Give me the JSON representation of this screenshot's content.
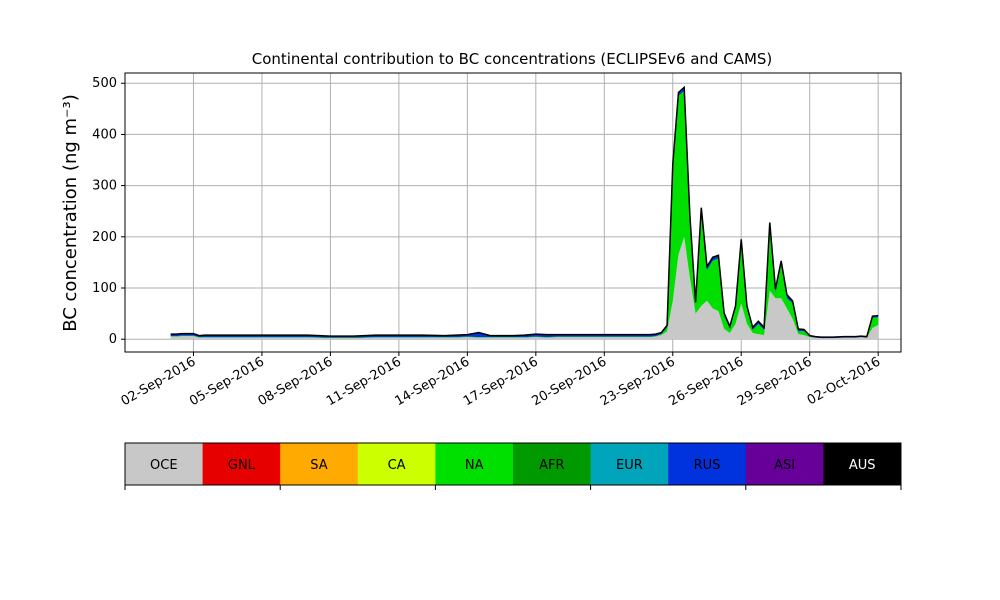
{
  "chart_data": {
    "type": "area",
    "title": "Continental contribution to BC concentrations (ECLIPSEv6 and CAMS)",
    "ylabel": "BC concentration (ng m⁻³)",
    "xlabel": "",
    "ylim": [
      -25,
      520
    ],
    "xlim": [
      "2016-08-30",
      "2016-10-03"
    ],
    "grid": true,
    "yticks": [
      0,
      100,
      200,
      300,
      400,
      500
    ],
    "xtick_labels": [
      "02-Sep-2016",
      "05-Sep-2016",
      "08-Sep-2016",
      "11-Sep-2016",
      "14-Sep-2016",
      "17-Sep-2016",
      "20-Sep-2016",
      "23-Sep-2016",
      "26-Sep-2016",
      "29-Sep-2016",
      "02-Oct-2016"
    ],
    "x": [
      "2016-09-01",
      "2016-09-01 06:00",
      "2016-09-01 12:00",
      "2016-09-02",
      "2016-09-02 06:00",
      "2016-09-02 12:00",
      "2016-09-03",
      "2016-09-04",
      "2016-09-05",
      "2016-09-06",
      "2016-09-07",
      "2016-09-08",
      "2016-09-09",
      "2016-09-10",
      "2016-09-11",
      "2016-09-12",
      "2016-09-13",
      "2016-09-13 12:00",
      "2016-09-14",
      "2016-09-14 12:00",
      "2016-09-15",
      "2016-09-16",
      "2016-09-16 12:00",
      "2016-09-17",
      "2016-09-17 12:00",
      "2016-09-18",
      "2016-09-19",
      "2016-09-20",
      "2016-09-21",
      "2016-09-22",
      "2016-09-22 06:00",
      "2016-09-22 12:00",
      "2016-09-22 18:00",
      "2016-09-23",
      "2016-09-23 06:00",
      "2016-09-23 12:00",
      "2016-09-23 18:00",
      "2016-09-24",
      "2016-09-24 06:00",
      "2016-09-24 12:00",
      "2016-09-24 18:00",
      "2016-09-25",
      "2016-09-25 06:00",
      "2016-09-25 12:00",
      "2016-09-25 18:00",
      "2016-09-26",
      "2016-09-26 06:00",
      "2016-09-26 12:00",
      "2016-09-26 18:00",
      "2016-09-27",
      "2016-09-27 06:00",
      "2016-09-27 12:00",
      "2016-09-27 18:00",
      "2016-09-28",
      "2016-09-28 06:00",
      "2016-09-28 12:00",
      "2016-09-28 18:00",
      "2016-09-29",
      "2016-09-29 06:00",
      "2016-09-29 12:00",
      "2016-09-29 18:00",
      "2016-09-30",
      "2016-09-30 12:00",
      "2016-10-01",
      "2016-10-01 06:00",
      "2016-10-01 12:00",
      "2016-10-01 18:00",
      "2016-10-02"
    ],
    "series": [
      {
        "name": "OCE",
        "color": "#c8c8c8",
        "values": [
          5,
          5,
          6,
          6,
          3,
          3,
          3,
          3,
          3,
          3,
          3,
          2,
          2,
          3,
          3,
          3,
          3,
          3,
          4,
          3,
          3,
          3,
          3,
          4,
          3,
          4,
          4,
          4,
          4,
          4,
          5,
          8,
          15,
          75,
          165,
          200,
          120,
          50,
          65,
          75,
          60,
          55,
          20,
          12,
          30,
          70,
          30,
          12,
          10,
          8,
          95,
          80,
          80,
          60,
          40,
          10,
          8,
          4,
          3,
          2,
          2,
          2,
          3,
          3,
          4,
          3,
          22,
          28
        ]
      },
      {
        "name": "NA",
        "color": "#00e000",
        "values": [
          1,
          1,
          1,
          1,
          1,
          1,
          1,
          1,
          1,
          1,
          1,
          1,
          1,
          1,
          1,
          1,
          1,
          1,
          1,
          1,
          1,
          1,
          1,
          1,
          1,
          1,
          1,
          1,
          1,
          1,
          1,
          2,
          8,
          260,
          310,
          285,
          115,
          15,
          185,
          60,
          93,
          103,
          25,
          8,
          30,
          120,
          30,
          6,
          20,
          10,
          125,
          10,
          65,
          20,
          30,
          5,
          8,
          1,
          0,
          0,
          0,
          0,
          0,
          0,
          0,
          0,
          20,
          15
        ]
      },
      {
        "name": "RUS",
        "color": "#0033dd",
        "values": [
          3,
          3,
          3,
          3,
          2,
          3,
          3,
          3,
          3,
          3,
          3,
          2,
          2,
          3,
          3,
          3,
          2,
          3,
          3,
          8,
          2,
          2,
          3,
          4,
          4,
          3,
          3,
          3,
          3,
          3,
          3,
          2,
          2,
          4,
          5,
          5,
          5,
          5,
          5,
          5,
          5,
          4,
          4,
          3,
          3,
          3,
          3,
          3,
          3,
          3,
          5,
          5,
          5,
          5,
          3,
          3,
          2,
          1,
          1,
          1,
          1,
          1,
          1,
          1,
          1,
          1,
          2,
          2
        ]
      },
      {
        "name": "AUS",
        "color": "#000000",
        "values": [
          1,
          1,
          1,
          1,
          1,
          1,
          1,
          1,
          1,
          1,
          1,
          1,
          1,
          1,
          1,
          1,
          1,
          1,
          1,
          1,
          1,
          1,
          1,
          1,
          1,
          1,
          1,
          1,
          1,
          1,
          1,
          1,
          2,
          2,
          2,
          2,
          2,
          2,
          2,
          2,
          2,
          2,
          2,
          2,
          2,
          2,
          2,
          2,
          2,
          2,
          3,
          3,
          3,
          2,
          2,
          2,
          1,
          1,
          1,
          1,
          1,
          1,
          1,
          1,
          1,
          1,
          1,
          1
        ]
      }
    ]
  },
  "colorbar": {
    "items": [
      {
        "label": "OCE",
        "color": "#c8c8c8",
        "text_color": "#000000"
      },
      {
        "label": "GNL",
        "color": "#e60000",
        "text_color": "#000000"
      },
      {
        "label": "SA",
        "color": "#ffaa00",
        "text_color": "#000000"
      },
      {
        "label": "CA",
        "color": "#ccff00",
        "text_color": "#000000"
      },
      {
        "label": "NA",
        "color": "#00e000",
        "text_color": "#000000"
      },
      {
        "label": "AFR",
        "color": "#009900",
        "text_color": "#000000"
      },
      {
        "label": "EUR",
        "color": "#00a5bb",
        "text_color": "#000000"
      },
      {
        "label": "RUS",
        "color": "#0033dd",
        "text_color": "#000000"
      },
      {
        "label": "ASI",
        "color": "#660099",
        "text_color": "#000000"
      },
      {
        "label": "AUS",
        "color": "#000000",
        "text_color": "#ffffff"
      }
    ]
  }
}
